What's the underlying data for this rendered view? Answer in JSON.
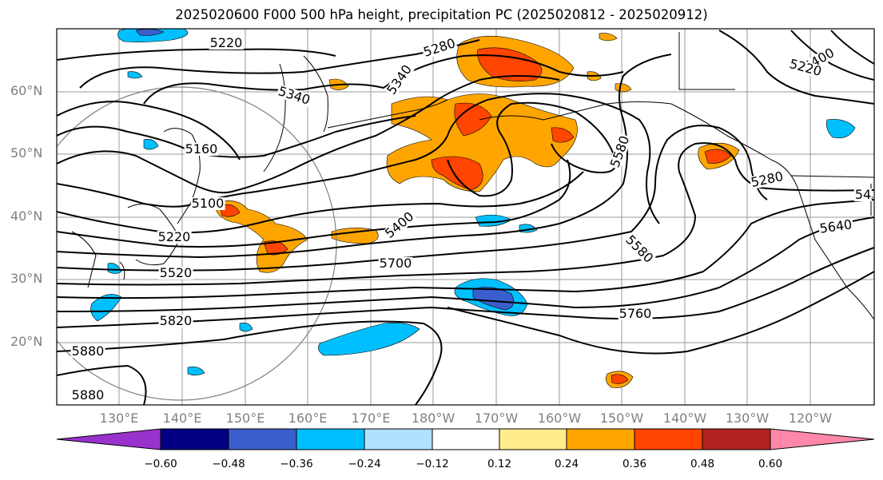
{
  "title": "2025020600 F000 500 hPa height, precipitation PC (2025020812 - 2025020912)",
  "map": {
    "lat_labels": [
      "60°N",
      "50°N",
      "40°N",
      "30°N",
      "20°N"
    ],
    "lon_labels": [
      "130°E",
      "140°E",
      "150°E",
      "160°E",
      "170°E",
      "180°W",
      "170°W",
      "160°W",
      "150°W",
      "140°W",
      "130°W",
      "120°W"
    ],
    "contour_labels": [
      "5220",
      "5280",
      "5340",
      "5340",
      "5160",
      "5100",
      "5220",
      "5520",
      "5820",
      "5880",
      "5880",
      "5400",
      "5700",
      "5580",
      "5580",
      "5760",
      "5280",
      "5640",
      "5400",
      "5220",
      "54"
    ]
  },
  "colorbar": {
    "tick_labels": [
      "−0.60",
      "−0.48",
      "−0.36",
      "−0.24",
      "−0.12",
      "0.12",
      "0.24",
      "0.36",
      "0.48",
      "0.60"
    ],
    "colors": [
      "#9932cc",
      "#000080",
      "#3a5fcd",
      "#00bfff",
      "#b0e2ff",
      "#ffffff",
      "#ffec8b",
      "#ffa500",
      "#ff4500",
      "#b22222",
      "#ff88aa"
    ]
  }
}
